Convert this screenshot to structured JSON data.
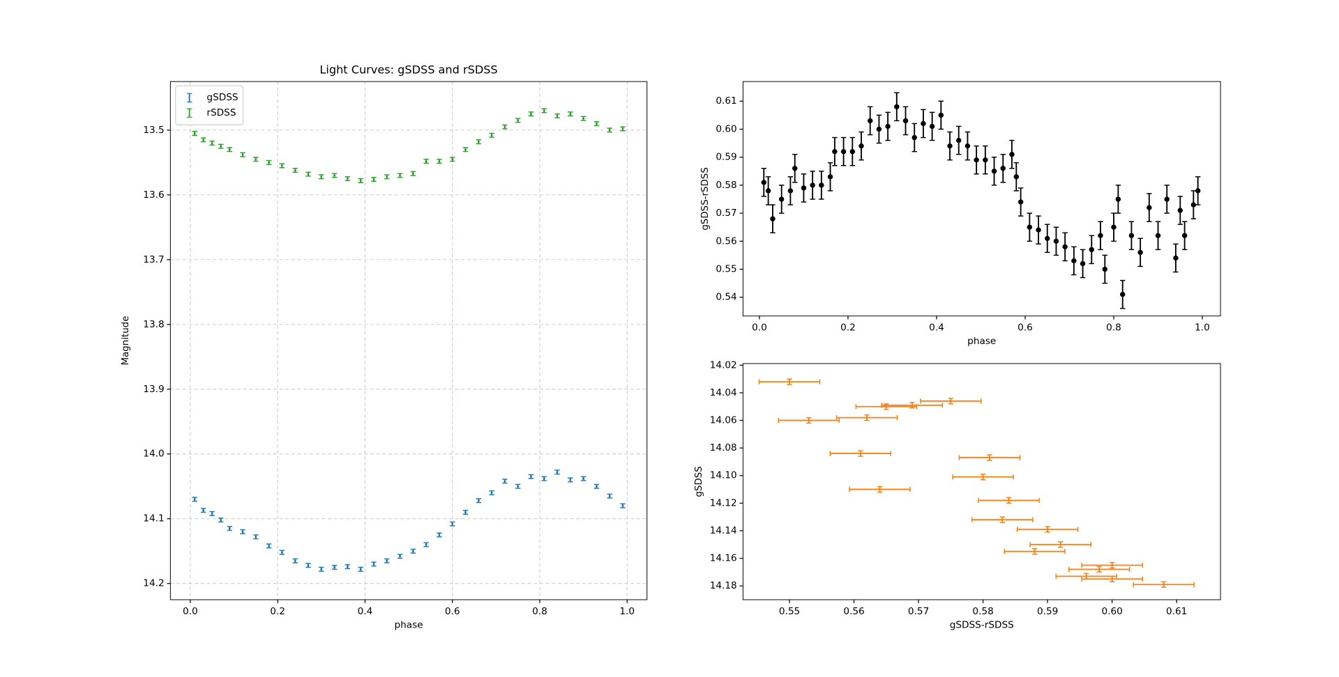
{
  "chart_data": [
    {
      "type": "errorbar",
      "title": "Light Curves: gSDSS and rSDSS",
      "x_label": "phase",
      "y_label": "Magnitude",
      "x": [
        0.01,
        0.03,
        0.05,
        0.07,
        0.09,
        0.12,
        0.15,
        0.18,
        0.21,
        0.24,
        0.27,
        0.3,
        0.33,
        0.36,
        0.39,
        0.42,
        0.45,
        0.48,
        0.51,
        0.54,
        0.57,
        0.6,
        0.63,
        0.66,
        0.69,
        0.72,
        0.75,
        0.78,
        0.81,
        0.84,
        0.87,
        0.9,
        0.93,
        0.96,
        0.99
      ],
      "series": [
        {
          "name": "gSDSS",
          "color": "#1f77b4",
          "yerr": 0.003,
          "values": [
            14.07,
            14.087,
            14.092,
            14.102,
            14.115,
            14.12,
            14.128,
            14.142,
            14.152,
            14.165,
            14.172,
            14.178,
            14.175,
            14.174,
            14.178,
            14.17,
            14.165,
            14.158,
            14.15,
            14.14,
            14.125,
            14.108,
            14.09,
            14.072,
            14.06,
            14.042,
            14.05,
            14.035,
            14.038,
            14.028,
            14.04,
            14.038,
            14.05,
            14.065,
            14.08
          ]
        },
        {
          "name": "rSDSS",
          "color": "#2ca02c",
          "yerr": 0.003,
          "values": [
            13.505,
            13.515,
            13.52,
            13.525,
            13.53,
            13.538,
            13.545,
            13.55,
            13.555,
            13.562,
            13.568,
            13.572,
            13.57,
            13.575,
            13.578,
            13.576,
            13.572,
            13.57,
            13.567,
            13.548,
            13.548,
            13.545,
            13.53,
            13.518,
            13.508,
            13.495,
            13.485,
            13.475,
            13.47,
            13.478,
            13.475,
            13.482,
            13.49,
            13.5,
            13.498
          ]
        }
      ],
      "xlim": [
        -0.0455,
        1.0455
      ],
      "xticks": [
        {
          "value": 0,
          "label": "0.0"
        },
        0.2,
        0.4,
        0.6,
        0.8,
        {
          "value": 1,
          "label": "1.0"
        }
      ],
      "ylim": [
        14.225,
        13.425
      ],
      "yticks": [
        13.5,
        13.6,
        13.7,
        13.8,
        13.9,
        {
          "value": 14,
          "label": "14.0"
        },
        14.1,
        14.2
      ],
      "grid": true,
      "legend": "upper left"
    },
    {
      "type": "errorbar",
      "x_label": "phase",
      "y_label": "gSDSS-rSDSS",
      "x": [
        0.01,
        0.02,
        0.03,
        0.05,
        0.07,
        0.08,
        0.1,
        0.12,
        0.14,
        0.16,
        0.17,
        0.19,
        0.21,
        0.23,
        0.25,
        0.27,
        0.29,
        0.31,
        0.33,
        0.35,
        0.37,
        0.39,
        0.41,
        0.43,
        0.45,
        0.47,
        0.49,
        0.51,
        0.53,
        0.55,
        0.57,
        0.58,
        0.59,
        0.61,
        0.63,
        0.65,
        0.67,
        0.69,
        0.71,
        0.73,
        0.75,
        0.77,
        0.78,
        0.8,
        0.81,
        0.82,
        0.84,
        0.86,
        0.88,
        0.9,
        0.92,
        0.94,
        0.95,
        0.96,
        0.98,
        0.99
      ],
      "series": [
        {
          "color": "#000000",
          "yerr": 0.005,
          "values": [
            0.581,
            0.578,
            0.568,
            0.575,
            0.578,
            0.586,
            0.579,
            0.58,
            0.58,
            0.583,
            0.592,
            0.592,
            0.592,
            0.594,
            0.603,
            0.6,
            0.601,
            0.608,
            0.603,
            0.597,
            0.602,
            0.601,
            0.605,
            0.594,
            0.596,
            0.594,
            0.589,
            0.589,
            0.585,
            0.586,
            0.591,
            0.583,
            0.574,
            0.565,
            0.564,
            0.561,
            0.56,
            0.558,
            0.553,
            0.552,
            0.557,
            0.562,
            0.55,
            0.565,
            0.575,
            0.541,
            0.562,
            0.556,
            0.572,
            0.562,
            0.575,
            0.554,
            0.571,
            0.562,
            0.573,
            0.578
          ]
        }
      ],
      "xlim": [
        -0.037,
        1.041
      ],
      "xticks": [
        {
          "value": 0,
          "label": "0.0"
        },
        0.2,
        0.4,
        0.6,
        0.8,
        {
          "value": 1,
          "label": "1.0"
        }
      ],
      "ylim": [
        0.5333,
        0.617
      ],
      "yticks": [
        0.54,
        0.55,
        0.56,
        0.57,
        0.58,
        0.59,
        {
          "value": 0.6,
          "label": "0.60"
        },
        0.61
      ],
      "grid": false
    },
    {
      "type": "errorbar",
      "x_label": "gSDSS-rSDSS",
      "y_label": "gSDSS",
      "x": [
        0.55,
        0.575,
        0.569,
        0.565,
        0.562,
        0.553,
        0.561,
        0.581,
        0.58,
        0.564,
        0.584,
        0.583,
        0.59,
        0.592,
        0.588,
        0.6,
        0.598,
        0.596,
        0.6,
        0.608
      ],
      "series": [
        {
          "color": "#ff7f0e",
          "yerr": 0.002,
          "xerr": 0.0047,
          "values": [
            14.032,
            14.046,
            14.049,
            14.05,
            14.058,
            14.06,
            14.084,
            14.087,
            14.101,
            14.11,
            14.118,
            14.132,
            14.139,
            14.15,
            14.155,
            14.165,
            14.168,
            14.173,
            14.175,
            14.179
          ]
        }
      ],
      "xlim": [
        0.5428,
        0.6168
      ],
      "xticks": [
        0.55,
        0.56,
        0.57,
        0.58,
        0.59,
        {
          "value": 0.6,
          "label": "0.60"
        },
        0.61
      ],
      "ylim": [
        14.19,
        14.0188
      ],
      "yticks": [
        14.02,
        14.04,
        14.06,
        14.08,
        {
          "value": 14.1,
          "label": "14.10"
        },
        14.12,
        14.14,
        14.16,
        14.18
      ],
      "grid": false
    }
  ]
}
